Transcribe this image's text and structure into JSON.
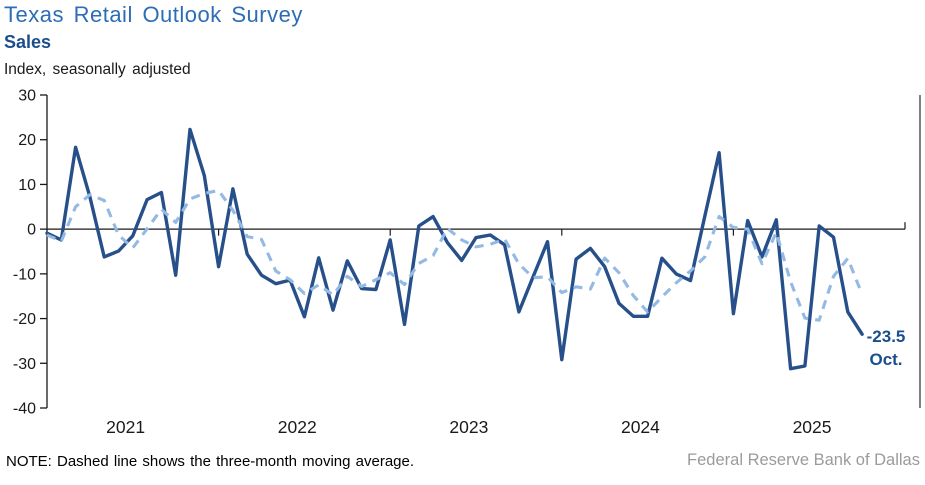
{
  "header": {
    "title": "Texas Retail Outlook Survey",
    "subtitle": "Sales",
    "axis_note": "Index, seasonally adjusted"
  },
  "annotation": {
    "value": "-23.5",
    "month": "Oct."
  },
  "footer": {
    "note": "NOTE: Dashed line shows the three-month moving average.",
    "source": "Federal Reserve Bank of Dallas"
  },
  "colors": {
    "title_blue": "#2C6DB5",
    "subtitle_navy": "#1B4E8C",
    "annotation_navy": "#1B4E8C",
    "line_solid": "#27508A",
    "line_dashed": "#94B9E4",
    "axis_black": "#1a1a1a",
    "tick_label": "#1a1a1a",
    "source_gray": "#9B9B9B"
  },
  "chart_data": {
    "type": "line",
    "title": "Texas Retail Outlook Survey — Sales",
    "ylabel": "Index, seasonally adjusted",
    "ylim": [
      -40,
      30
    ],
    "yticks": [
      30,
      20,
      10,
      0,
      -10,
      -20,
      -30,
      -40
    ],
    "grid": false,
    "zero_line": true,
    "x_start_month": "2021-01",
    "x_end_month": "2025-10",
    "frequency": "monthly",
    "x_year_labels": [
      "2021",
      "2022",
      "2023",
      "2024",
      "2025"
    ],
    "series": [
      {
        "name": "Sales index",
        "style": "solid",
        "values": [
          -0.9,
          -2.4,
          18.3,
          7.2,
          -6.2,
          -4.9,
          -1.5,
          6.6,
          8.2,
          -10.3,
          22.3,
          12.0,
          -8.4,
          9.0,
          -5.6,
          -10.3,
          -12.2,
          -11.4,
          -19.6,
          -6.4,
          -18.1,
          -7.1,
          -13.3,
          -13.5,
          -2.4,
          -21.3,
          0.7,
          2.8,
          -3.0,
          -7.0,
          -1.9,
          -1.3,
          -3.5,
          -18.5,
          -10.6,
          -2.8,
          -29.2,
          -6.7,
          -4.3,
          -8.4,
          -16.6,
          -19.5,
          -19.5,
          -6.5,
          -10.0,
          -11.5,
          2.9,
          17.1,
          -18.9,
          1.9,
          -6.2,
          2.1,
          -31.2,
          -30.6,
          0.7,
          -1.8,
          -18.5,
          -23.5
        ]
      },
      {
        "name": "Three-month moving average",
        "style": "dashed",
        "derived": "trailing_3_month_mean_of_sales_index",
        "head_values": [
          -1.3,
          -2.7
        ]
      }
    ],
    "last_point": {
      "label": "Oct.",
      "value": -23.5
    }
  }
}
